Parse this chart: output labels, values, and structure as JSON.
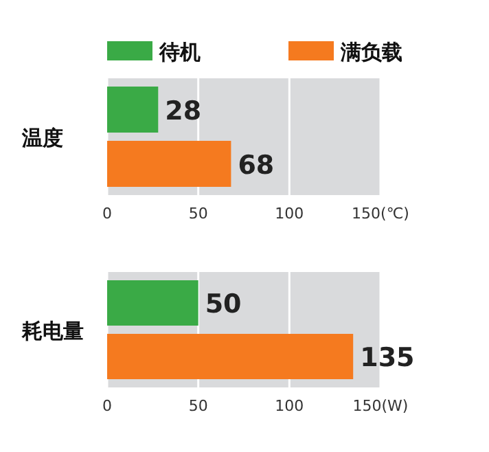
{
  "chart_data": [
    {
      "type": "bar",
      "orientation": "horizontal",
      "categories": [
        "温度"
      ],
      "series": [
        {
          "name": "待机",
          "color": "#3aaa46",
          "values": [
            28
          ]
        },
        {
          "name": "满负载",
          "color": "#f57a1f",
          "values": [
            68
          ]
        }
      ],
      "xlim": [
        0,
        150
      ],
      "xticks": [
        0,
        50,
        100,
        {
          "value": 150,
          "label": "150(℃)"
        }
      ],
      "grid": "x",
      "legend": "top",
      "data_labels": true
    },
    {
      "type": "bar",
      "orientation": "horizontal",
      "categories": [
        "耗电量"
      ],
      "series": [
        {
          "color": "#3aaa46",
          "values": [
            50
          ]
        },
        {
          "color": "#f57a1f",
          "values": [
            135
          ]
        }
      ],
      "xlim": [
        0,
        150
      ],
      "xticks": [
        0,
        50,
        100,
        {
          "value": 150,
          "label": "150(W)"
        }
      ],
      "grid": "x",
      "data_labels": true
    }
  ]
}
